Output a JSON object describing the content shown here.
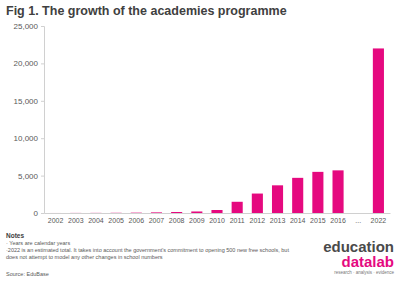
{
  "chart_data": {
    "type": "bar",
    "title": "Fig 1. The growth of the academies programme",
    "categories": [
      "2002",
      "2003",
      "2004",
      "2005",
      "2006",
      "2007",
      "2008",
      "2009",
      "2010",
      "2011",
      "2012",
      "2013",
      "2014",
      "2015",
      "2016",
      "...",
      "2022"
    ],
    "values": [
      3,
      12,
      17,
      27,
      46,
      83,
      133,
      203,
      400,
      1500,
      2600,
      3700,
      4700,
      5500,
      5700,
      null,
      22000
    ],
    "color": "#e5097f",
    "ylim": [
      0,
      25000
    ],
    "yticks": [
      0,
      {
        "value": 5000,
        "label": "5,000"
      },
      {
        "value": 10000,
        "label": "10,000"
      },
      {
        "value": 15000,
        "label": "15,000"
      },
      {
        "value": 20000,
        "label": "20,000"
      },
      {
        "value": 25000,
        "label": "25,000"
      }
    ],
    "grid": false,
    "annotations": [
      "Notes",
      "· Years are calendar years",
      "·2022 is an estimated total. It takes into account the government's commitment to opening 500 new free schools, but does not attempt to model any other changes in school numbers",
      "Source: EduBase",
      "education",
      "datalab",
      "research · analysis · evidence"
    ]
  }
}
